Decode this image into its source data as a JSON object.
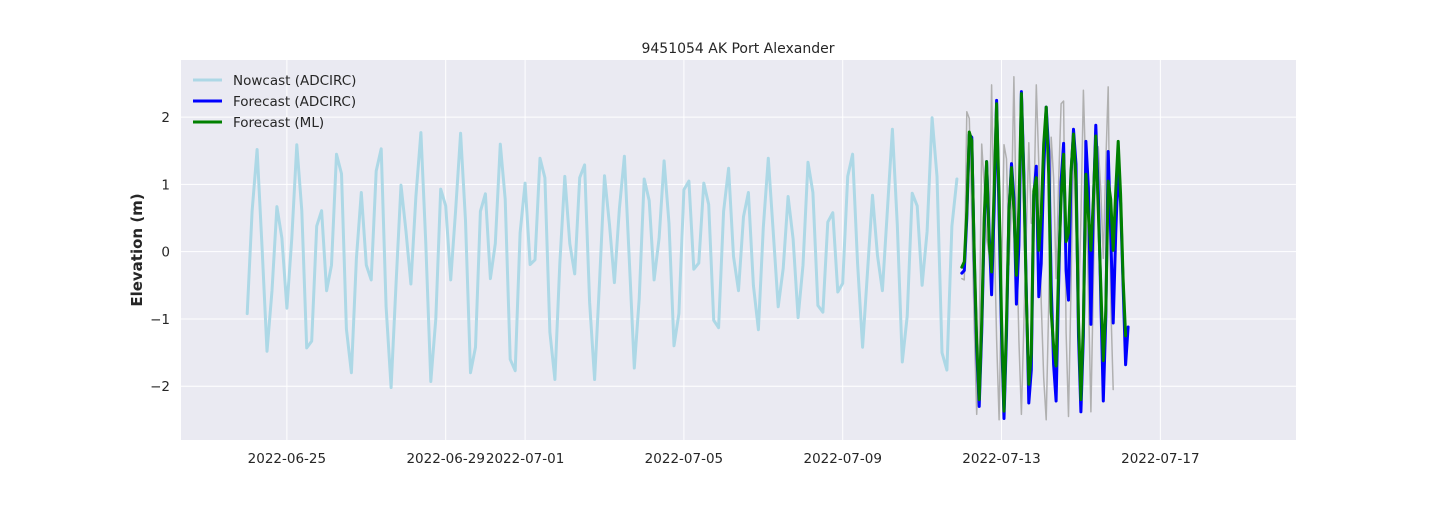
{
  "chart_data": {
    "type": "line",
    "title": "9451054 AK Port Alexander",
    "xlabel": "",
    "ylabel": "Elevation (m)",
    "x_unit": "date",
    "xlim": [
      "2022-06-22T08:00",
      "2022-07-20T10:00"
    ],
    "ylim": [
      -2.8,
      2.85
    ],
    "x_ticks": [
      "2022-06-25",
      "2022-06-29",
      "2022-07-01",
      "2022-07-05",
      "2022-07-09",
      "2022-07-13",
      "2022-07-17"
    ],
    "y_ticks": [
      -2,
      -1,
      0,
      1,
      2
    ],
    "y_tick_labels": [
      "−2",
      "−1",
      "0",
      "1",
      "2"
    ],
    "grid": true,
    "legend_position": "top-left",
    "style": {
      "background": "#ffffff",
      "plot_bg": "#eaeaf2",
      "grid_color": "#ffffff",
      "text_color": "#262626"
    },
    "series": [
      {
        "name": "Nowcast (ADCIRC)",
        "color": "#add8e6",
        "width": 3,
        "start": "2022-06-24T00:00",
        "step_hours": 3,
        "values": [
          -0.92,
          0.6,
          1.52,
          0.05,
          -1.48,
          -0.58,
          0.67,
          0.2,
          -0.84,
          0.2,
          1.59,
          0.61,
          -1.43,
          -1.33,
          0.38,
          0.61,
          -0.58,
          -0.2,
          1.45,
          1.16,
          -1.15,
          -1.8,
          -0.1,
          0.88,
          -0.2,
          -0.42,
          1.2,
          1.53,
          -0.82,
          -2.02,
          -0.46,
          0.99,
          0.3,
          -0.48,
          0.82,
          1.77,
          0.12,
          -1.93,
          -1.0,
          0.93,
          0.68,
          -0.42,
          0.61,
          1.76,
          0.46,
          -1.8,
          -1.42,
          0.6,
          0.86,
          -0.4,
          0.12,
          1.6,
          0.78,
          -1.6,
          -1.77,
          0.28,
          1.02,
          -0.19,
          -0.12,
          1.39,
          1.1,
          -1.2,
          -1.9,
          -0.18,
          1.12,
          0.12,
          -0.33,
          1.1,
          1.29,
          -0.75,
          -1.9,
          -0.46,
          1.13,
          0.4,
          -0.46,
          0.64,
          1.42,
          -0.12,
          -1.73,
          -0.7,
          1.08,
          0.76,
          -0.42,
          0.2,
          1.35,
          0.42,
          -1.4,
          -0.92,
          0.92,
          1.05,
          -0.26,
          -0.17,
          1.02,
          0.7,
          -1.02,
          -1.13,
          0.6,
          1.24,
          -0.07,
          -0.58,
          0.52,
          0.88,
          -0.5,
          -1.16,
          0.36,
          1.39,
          0.3,
          -0.82,
          -0.25,
          0.82,
          0.19,
          -0.98,
          -0.2,
          1.33,
          0.88,
          -0.8,
          -0.9,
          0.44,
          0.58,
          -0.6,
          -0.47,
          1.12,
          1.45,
          -0.18,
          -1.42,
          -0.3,
          0.84,
          -0.06,
          -0.58,
          0.62,
          1.82,
          0.4,
          -1.64,
          -0.96,
          0.87,
          0.68,
          -0.5,
          0.3,
          1.99,
          1.12,
          -1.5,
          -1.76,
          0.38,
          1.08
        ]
      },
      {
        "name": "Forecast (ADCIRC)",
        "color": "#0000ff",
        "width": 3,
        "start": "2022-07-12T00:00",
        "step_hours": 1.5,
        "values": [
          -0.32,
          -0.28,
          0.5,
          1.74,
          1.7,
          -0.08,
          -1.48,
          -2.3,
          -1.2,
          0.34,
          1.34,
          0.3,
          -0.64,
          0.62,
          2.25,
          0.52,
          -1.2,
          -2.48,
          -1.24,
          0.6,
          1.31,
          0.8,
          -0.78,
          0.1,
          2.38,
          1.14,
          -0.58,
          -2.25,
          -1.76,
          0.84,
          1.27,
          -0.67,
          -0.18,
          1.2,
          2.15,
          1.5,
          -0.5,
          -1.68,
          -2.22,
          -0.5,
          1.04,
          1.61,
          -0.28,
          -0.72,
          1.13,
          1.82,
          1.3,
          -1.26,
          -2.38,
          -1.25,
          1.64,
          0.95,
          -1.08,
          0.68,
          1.88,
          0.88,
          -0.7,
          -2.22,
          -0.98,
          1.49,
          0.28,
          -1.06,
          0.26,
          1.25,
          0.72,
          -0.5,
          -1.68,
          -1.12
        ]
      },
      {
        "name": "Forecast (ML)",
        "color": "#008000",
        "width": 3,
        "start": "2022-07-12T00:00",
        "step_hours": 1.5,
        "values": [
          -0.23,
          -0.15,
          0.6,
          1.78,
          1.65,
          0.0,
          -1.35,
          -2.2,
          -1.05,
          0.5,
          1.34,
          0.15,
          -0.3,
          0.9,
          2.2,
          0.82,
          -0.98,
          -2.37,
          -1.05,
          0.62,
          1.25,
          0.62,
          -0.35,
          0.65,
          2.35,
          1.02,
          -0.65,
          -1.97,
          -1.52,
          0.9,
          1.1,
          0.02,
          0.55,
          1.6,
          2.15,
          1.15,
          -0.9,
          -1.4,
          -1.7,
          -0.25,
          0.8,
          1.45,
          0.15,
          0.28,
          1.2,
          1.75,
          1.05,
          -1.02,
          -2.2,
          -1.05,
          1.15,
          0.55,
          0.02,
          0.75,
          1.72,
          0.6,
          -0.5,
          -1.62,
          -0.88,
          1.05,
          0.78,
          0.02,
          0.9,
          1.64,
          0.85,
          -0.4,
          -1.25
        ]
      },
      {
        "name": "",
        "color": "#b0b0b0",
        "width": 1.5,
        "start": "2022-07-12T00:00",
        "step_hours": 1.5,
        "values": [
          -0.4,
          -0.42,
          2.08,
          1.98,
          0.52,
          -1.08,
          -2.42,
          -1.38,
          1.6,
          1.0,
          0.2,
          -0.05,
          2.48,
          0.38,
          -1.3,
          -2.5,
          -0.45,
          1.59,
          1.38,
          -0.2,
          0.68,
          2.6,
          0.32,
          -1.32,
          -2.42,
          -1.05,
          0.25,
          1.62,
          0.42,
          0.58,
          2.48,
          1.3,
          -0.74,
          -1.88,
          -2.5,
          -0.8,
          1.7,
          1.1,
          -0.4,
          1.02,
          2.2,
          2.24,
          -1.2,
          -2.45,
          -0.55,
          1.6,
          0.28,
          -0.8,
          0.48,
          2.4,
          1.1,
          -0.6,
          -2.38,
          -0.5,
          1.52,
          1.56,
          0.9,
          -0.1,
          1.32,
          2.45,
          -0.72,
          -2.05
        ]
      }
    ]
  }
}
